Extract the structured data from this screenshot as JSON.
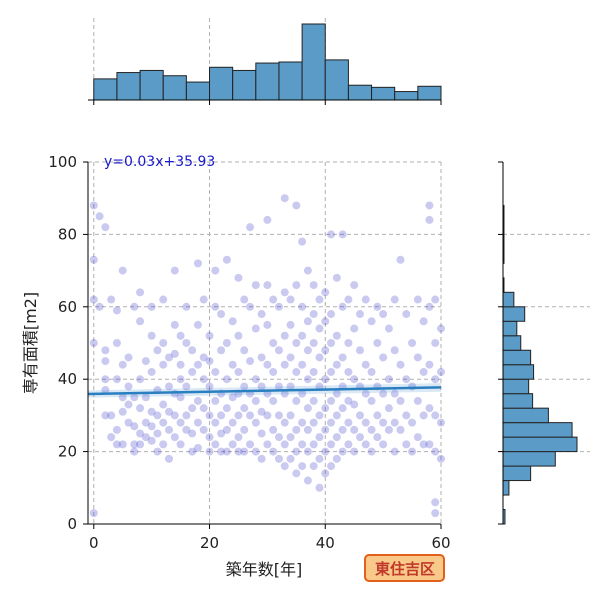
{
  "chart_data": {
    "type": "scatter",
    "kind": "jointplot",
    "xlabel": "築年数[年]",
    "ylabel": "専有面積[m2]",
    "xlim": [
      -1,
      60
    ],
    "ylim": [
      0,
      100
    ],
    "xticks": [
      0,
      20,
      40,
      60
    ],
    "yticks": [
      0,
      20,
      40,
      60,
      80,
      100
    ],
    "grid": true,
    "regression": {
      "label": "y=0.03x+35.93",
      "slope": 0.03,
      "intercept": 35.93,
      "color": "#2a7fc0"
    },
    "badge": "東住吉区",
    "colors": {
      "point": "#4040cc",
      "hist": "#5b9bc7",
      "badge_fill": "#f9c98a",
      "badge_border": "#e0601c",
      "badge_text": "#c0392b"
    },
    "scatter_points": [
      [
        0,
        88
      ],
      [
        0,
        73
      ],
      [
        0,
        62
      ],
      [
        0,
        50
      ],
      [
        0,
        3
      ],
      [
        1,
        85
      ],
      [
        2,
        82
      ],
      [
        1,
        60
      ],
      [
        2,
        48
      ],
      [
        2,
        45
      ],
      [
        2,
        40
      ],
      [
        2,
        37
      ],
      [
        2,
        30
      ],
      [
        3,
        30
      ],
      [
        3,
        24
      ],
      [
        3,
        62
      ],
      [
        4,
        59
      ],
      [
        4,
        50
      ],
      [
        4,
        40
      ],
      [
        4,
        26
      ],
      [
        4,
        22
      ],
      [
        5,
        70
      ],
      [
        5,
        44
      ],
      [
        5,
        35
      ],
      [
        5,
        31
      ],
      [
        5,
        22
      ],
      [
        6,
        28
      ],
      [
        6,
        33
      ],
      [
        6,
        38
      ],
      [
        6,
        46
      ],
      [
        7,
        60
      ],
      [
        7,
        35
      ],
      [
        7,
        27
      ],
      [
        7,
        22
      ],
      [
        7,
        20
      ],
      [
        8,
        64
      ],
      [
        8,
        56
      ],
      [
        8,
        40
      ],
      [
        8,
        32
      ],
      [
        8,
        25
      ],
      [
        8,
        22
      ],
      [
        9,
        45
      ],
      [
        9,
        35
      ],
      [
        9,
        28
      ],
      [
        9,
        24
      ],
      [
        10,
        60
      ],
      [
        10,
        52
      ],
      [
        10,
        42
      ],
      [
        10,
        31
      ],
      [
        10,
        27
      ],
      [
        10,
        23
      ],
      [
        11,
        48
      ],
      [
        11,
        37
      ],
      [
        11,
        30
      ],
      [
        11,
        25
      ],
      [
        11,
        20
      ],
      [
        12,
        62
      ],
      [
        12,
        50
      ],
      [
        12,
        44
      ],
      [
        12,
        33
      ],
      [
        12,
        28
      ],
      [
        12,
        22
      ],
      [
        13,
        46
      ],
      [
        13,
        38
      ],
      [
        13,
        31
      ],
      [
        13,
        26
      ],
      [
        13,
        18
      ],
      [
        14,
        70
      ],
      [
        14,
        55
      ],
      [
        14,
        47
      ],
      [
        14,
        36
      ],
      [
        14,
        30
      ],
      [
        14,
        24
      ],
      [
        15,
        52
      ],
      [
        15,
        44
      ],
      [
        15,
        40
      ],
      [
        15,
        35
      ],
      [
        15,
        28
      ],
      [
        15,
        22
      ],
      [
        16,
        60
      ],
      [
        16,
        50
      ],
      [
        16,
        38
      ],
      [
        16,
        30
      ],
      [
        16,
        26
      ],
      [
        17,
        48
      ],
      [
        17,
        42
      ],
      [
        17,
        32
      ],
      [
        17,
        25
      ],
      [
        17,
        20
      ],
      [
        18,
        72
      ],
      [
        18,
        55
      ],
      [
        18,
        44
      ],
      [
        18,
        34
      ],
      [
        18,
        28
      ],
      [
        18,
        21
      ],
      [
        19,
        62
      ],
      [
        19,
        46
      ],
      [
        19,
        40
      ],
      [
        19,
        32
      ],
      [
        19,
        26
      ],
      [
        20,
        52
      ],
      [
        20,
        45
      ],
      [
        20,
        38
      ],
      [
        20,
        30
      ],
      [
        20,
        24
      ],
      [
        20,
        20
      ],
      [
        21,
        70
      ],
      [
        21,
        60
      ],
      [
        21,
        42
      ],
      [
        21,
        34
      ],
      [
        21,
        28
      ],
      [
        21,
        22
      ],
      [
        22,
        58
      ],
      [
        22,
        48
      ],
      [
        22,
        36
      ],
      [
        22,
        30
      ],
      [
        22,
        25
      ],
      [
        22,
        20
      ],
      [
        23,
        73
      ],
      [
        23,
        50
      ],
      [
        23,
        40
      ],
      [
        23,
        32
      ],
      [
        23,
        26
      ],
      [
        23,
        20
      ],
      [
        24,
        56
      ],
      [
        24,
        44
      ],
      [
        24,
        35
      ],
      [
        24,
        28
      ],
      [
        24,
        22
      ],
      [
        25,
        68
      ],
      [
        25,
        52
      ],
      [
        25,
        42
      ],
      [
        25,
        36
      ],
      [
        25,
        30
      ],
      [
        25,
        24
      ],
      [
        25,
        20
      ],
      [
        26,
        62
      ],
      [
        26,
        48
      ],
      [
        26,
        38
      ],
      [
        26,
        32
      ],
      [
        26,
        26
      ],
      [
        26,
        20
      ],
      [
        27,
        82
      ],
      [
        27,
        60
      ],
      [
        27,
        45
      ],
      [
        27,
        36
      ],
      [
        27,
        30
      ],
      [
        27,
        22
      ],
      [
        28,
        66
      ],
      [
        28,
        54
      ],
      [
        28,
        40
      ],
      [
        28,
        34
      ],
      [
        28,
        28
      ],
      [
        28,
        20
      ],
      [
        29,
        58
      ],
      [
        29,
        46
      ],
      [
        29,
        38
      ],
      [
        29,
        31
      ],
      [
        29,
        25
      ],
      [
        29,
        18
      ],
      [
        30,
        84
      ],
      [
        30,
        66
      ],
      [
        30,
        55
      ],
      [
        30,
        44
      ],
      [
        30,
        36
      ],
      [
        30,
        30
      ],
      [
        30,
        22
      ],
      [
        31,
        62
      ],
      [
        31,
        50
      ],
      [
        31,
        42
      ],
      [
        31,
        34
      ],
      [
        31,
        26
      ],
      [
        31,
        20
      ],
      [
        32,
        60
      ],
      [
        32,
        48
      ],
      [
        32,
        38
      ],
      [
        32,
        30
      ],
      [
        32,
        24
      ],
      [
        32,
        18
      ],
      [
        33,
        90
      ],
      [
        33,
        64
      ],
      [
        33,
        52
      ],
      [
        33,
        44
      ],
      [
        33,
        36
      ],
      [
        33,
        28
      ],
      [
        33,
        22
      ],
      [
        33,
        16
      ],
      [
        34,
        62
      ],
      [
        34,
        55
      ],
      [
        34,
        46
      ],
      [
        34,
        38
      ],
      [
        34,
        30
      ],
      [
        34,
        24
      ],
      [
        34,
        18
      ],
      [
        35,
        88
      ],
      [
        35,
        66
      ],
      [
        35,
        50
      ],
      [
        35,
        42
      ],
      [
        35,
        34
      ],
      [
        35,
        26
      ],
      [
        35,
        20
      ],
      [
        35,
        14
      ],
      [
        36,
        78
      ],
      [
        36,
        60
      ],
      [
        36,
        52
      ],
      [
        36,
        44
      ],
      [
        36,
        36
      ],
      [
        36,
        28
      ],
      [
        36,
        22
      ],
      [
        36,
        16
      ],
      [
        37,
        70
      ],
      [
        37,
        56
      ],
      [
        37,
        48
      ],
      [
        37,
        40
      ],
      [
        37,
        32
      ],
      [
        37,
        26
      ],
      [
        37,
        20
      ],
      [
        37,
        12
      ],
      [
        38,
        66
      ],
      [
        38,
        58
      ],
      [
        38,
        50
      ],
      [
        38,
        42
      ],
      [
        38,
        34
      ],
      [
        38,
        28
      ],
      [
        38,
        22
      ],
      [
        38,
        16
      ],
      [
        39,
        62
      ],
      [
        39,
        54
      ],
      [
        39,
        46
      ],
      [
        39,
        38
      ],
      [
        39,
        30
      ],
      [
        39,
        24
      ],
      [
        39,
        18
      ],
      [
        39,
        10
      ],
      [
        40,
        64
      ],
      [
        40,
        56
      ],
      [
        40,
        48
      ],
      [
        40,
        40
      ],
      [
        40,
        32
      ],
      [
        40,
        26
      ],
      [
        40,
        20
      ],
      [
        40,
        14
      ],
      [
        41,
        80
      ],
      [
        41,
        58
      ],
      [
        41,
        50
      ],
      [
        41,
        42
      ],
      [
        41,
        34
      ],
      [
        41,
        28
      ],
      [
        41,
        22
      ],
      [
        41,
        16
      ],
      [
        42,
        68
      ],
      [
        42,
        52
      ],
      [
        42,
        44
      ],
      [
        42,
        36
      ],
      [
        42,
        30
      ],
      [
        42,
        24
      ],
      [
        42,
        18
      ],
      [
        43,
        80
      ],
      [
        43,
        60
      ],
      [
        43,
        46
      ],
      [
        43,
        38
      ],
      [
        43,
        32
      ],
      [
        43,
        26
      ],
      [
        43,
        20
      ],
      [
        44,
        62
      ],
      [
        44,
        50
      ],
      [
        44,
        42
      ],
      [
        44,
        34
      ],
      [
        44,
        28
      ],
      [
        44,
        22
      ],
      [
        45,
        66
      ],
      [
        45,
        54
      ],
      [
        45,
        40
      ],
      [
        45,
        33
      ],
      [
        45,
        26
      ],
      [
        45,
        20
      ],
      [
        46,
        58
      ],
      [
        46,
        48
      ],
      [
        46,
        38
      ],
      [
        46,
        30
      ],
      [
        46,
        24
      ],
      [
        47,
        62
      ],
      [
        47,
        44
      ],
      [
        47,
        36
      ],
      [
        47,
        28
      ],
      [
        47,
        22
      ],
      [
        48,
        56
      ],
      [
        48,
        42
      ],
      [
        48,
        34
      ],
      [
        48,
        26
      ],
      [
        48,
        20
      ],
      [
        49,
        60
      ],
      [
        49,
        50
      ],
      [
        49,
        38
      ],
      [
        49,
        30
      ],
      [
        49,
        24
      ],
      [
        50,
        58
      ],
      [
        50,
        46
      ],
      [
        50,
        36
      ],
      [
        50,
        28
      ],
      [
        50,
        22
      ],
      [
        51,
        54
      ],
      [
        51,
        40
      ],
      [
        51,
        32
      ],
      [
        51,
        26
      ],
      [
        52,
        62
      ],
      [
        52,
        48
      ],
      [
        52,
        36
      ],
      [
        52,
        28
      ],
      [
        52,
        20
      ],
      [
        53,
        73
      ],
      [
        53,
        44
      ],
      [
        53,
        34
      ],
      [
        53,
        26
      ],
      [
        54,
        58
      ],
      [
        54,
        40
      ],
      [
        54,
        30
      ],
      [
        54,
        22
      ],
      [
        55,
        50
      ],
      [
        55,
        38
      ],
      [
        55,
        28
      ],
      [
        55,
        20
      ],
      [
        56,
        62
      ],
      [
        56,
        46
      ],
      [
        56,
        34
      ],
      [
        56,
        24
      ],
      [
        57,
        56
      ],
      [
        57,
        42
      ],
      [
        57,
        30
      ],
      [
        57,
        22
      ],
      [
        58,
        88
      ],
      [
        58,
        84
      ],
      [
        58,
        60
      ],
      [
        58,
        44
      ],
      [
        58,
        32
      ],
      [
        58,
        22
      ],
      [
        59,
        62
      ],
      [
        59,
        50
      ],
      [
        59,
        40
      ],
      [
        59,
        30
      ],
      [
        59,
        20
      ],
      [
        59,
        6
      ],
      [
        59,
        3
      ],
      [
        60,
        54
      ],
      [
        60,
        42
      ],
      [
        60,
        28
      ],
      [
        60,
        18
      ]
    ],
    "top_histogram": {
      "bins": [
        0,
        4,
        8,
        12,
        16,
        20,
        24,
        28,
        32,
        36,
        40,
        44,
        48,
        52,
        56,
        60
      ],
      "counts": [
        20,
        26,
        28,
        23,
        17,
        31,
        28,
        35,
        36,
        72,
        38,
        14,
        12,
        8,
        13
      ]
    },
    "right_histogram": {
      "bins": [
        0,
        4,
        8,
        12,
        16,
        20,
        24,
        28,
        32,
        36,
        40,
        44,
        48,
        52,
        56,
        60,
        64,
        68,
        72,
        76,
        80,
        84,
        88,
        92,
        96,
        100
      ],
      "counts": [
        2,
        0,
        6,
        28,
        53,
        75,
        70,
        46,
        30,
        26,
        31,
        28,
        18,
        14,
        22,
        11,
        1,
        0,
        1,
        1,
        1,
        1,
        0,
        0,
        0
      ]
    }
  }
}
